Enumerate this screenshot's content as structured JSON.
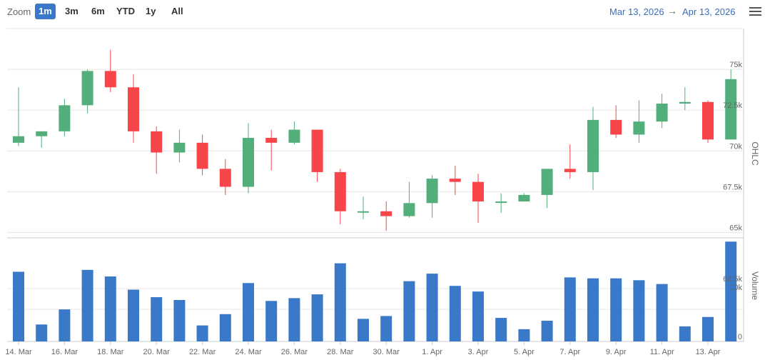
{
  "toolbar": {
    "zoom_label": "Zoom",
    "zoom_buttons": [
      "1m",
      "3m",
      "6m",
      "YTD",
      "1y",
      "All"
    ],
    "active_zoom": "1m",
    "range_from": "Mar 13, 2026",
    "range_arrow": "→",
    "range_to": "Apr 13, 2026",
    "menu_icon": "hamburger-menu-icon"
  },
  "colors": {
    "up": "#52ae7a",
    "down": "#f84549",
    "volume": "#3a78c8"
  },
  "chart_data": [
    {
      "type": "candlestick",
      "axis_title": "OHLC",
      "y_ticks": [
        "65k",
        "67.5k",
        "70k",
        "72.5k",
        "75k"
      ],
      "y_tick_values": [
        65000,
        67500,
        70000,
        72500,
        75000
      ],
      "ylim": [
        64800,
        77500
      ],
      "grid": true,
      "x_labels": [
        "14. Mar",
        "16. Mar",
        "18. Mar",
        "20. Mar",
        "22. Mar",
        "24. Mar",
        "26. Mar",
        "28. Mar",
        "30. Mar",
        "1. Apr",
        "3. Apr",
        "5. Apr",
        "7. Apr",
        "9. Apr",
        "11. Apr",
        "13. Apr"
      ],
      "series": [
        {
          "ohlc": [
            [
              70500,
              73900,
              70300,
              70900
            ],
            [
              70900,
              71200,
              70200,
              71200
            ],
            [
              71200,
              73200,
              70900,
              72800
            ],
            [
              72800,
              75000,
              72300,
              74900
            ],
            [
              74900,
              76200,
              73600,
              73900
            ],
            [
              73900,
              74700,
              70500,
              71200
            ],
            [
              71200,
              71500,
              68600,
              69900
            ],
            [
              69900,
              71300,
              69300,
              70500
            ],
            [
              70500,
              71000,
              68500,
              68900
            ],
            [
              68900,
              69500,
              67300,
              67800
            ],
            [
              67800,
              71700,
              67400,
              70800
            ],
            [
              70800,
              71300,
              68800,
              70500
            ],
            [
              70500,
              71800,
              70400,
              71300
            ],
            [
              71300,
              71300,
              68100,
              68700
            ],
            [
              68700,
              68900,
              65500,
              66300
            ],
            [
              66300,
              67200,
              65800,
              66300
            ],
            [
              66300,
              66900,
              65100,
              66000
            ],
            [
              66000,
              68100,
              65900,
              66800
            ],
            [
              66800,
              68500,
              65900,
              68300
            ],
            [
              68300,
              69100,
              67300,
              68100
            ],
            [
              68100,
              68600,
              65600,
              66900
            ],
            [
              66900,
              67400,
              66200,
              66900
            ],
            [
              66900,
              67400,
              66900,
              67300
            ],
            [
              67300,
              68900,
              66500,
              68900
            ],
            [
              68900,
              70400,
              68300,
              68700
            ],
            [
              68700,
              72700,
              67600,
              71900
            ],
            [
              71900,
              72800,
              70800,
              71000
            ],
            [
              71000,
              73100,
              70500,
              71800
            ],
            [
              71800,
              73500,
              71400,
              72900
            ],
            [
              72900,
              73900,
              72500,
              73000
            ],
            [
              73000,
              73100,
              70500,
              70700
            ],
            [
              70700,
              75000,
              70700,
              74400
            ]
          ]
        }
      ]
    },
    {
      "type": "bar",
      "axis_title": "Volume",
      "y_ticks": [
        "0",
        "10k",
        "62.5k"
      ],
      "series": [
        {
          "name": "Volume",
          "values": [
            37000,
            9000,
            17000,
            38000,
            34500,
            27500,
            23500,
            22000,
            8500,
            14500,
            31000,
            21500,
            23000,
            25000,
            41500,
            12000,
            13500,
            32000,
            36000,
            29500,
            26500,
            12500,
            6500,
            11000,
            34000,
            33500,
            33500,
            32500,
            30500,
            8000,
            13000,
            53000
          ]
        }
      ],
      "ylim": [
        0,
        55000
      ]
    }
  ]
}
